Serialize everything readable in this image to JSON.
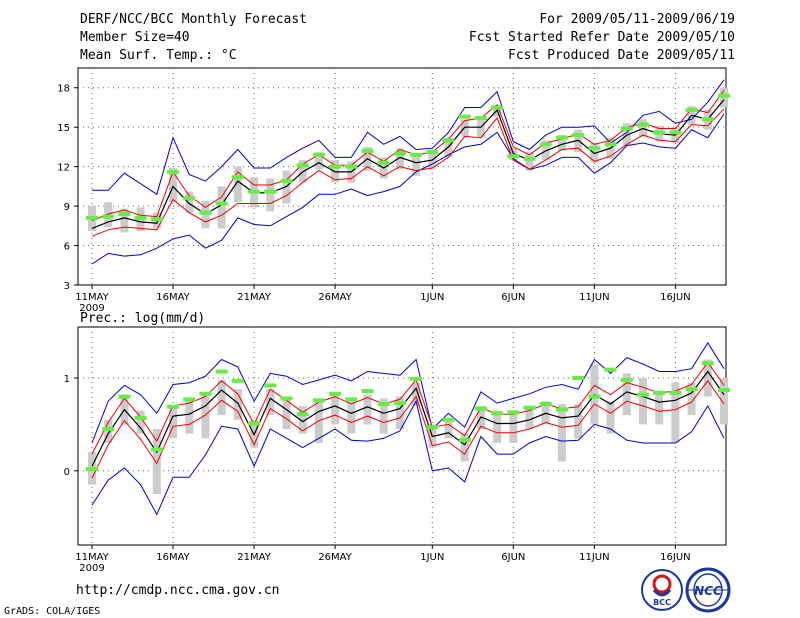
{
  "header": {
    "title": "DERF/NCC/BCC Monthly Forecast",
    "member_size": "Member Size=40",
    "variable": "Mean Surf. Temp.: °C",
    "period": "For 2009/05/11-2009/06/19",
    "fcst_started": "Fcst Started Refer Date 2009/05/10",
    "fcst_produced": "Fcst Produced Date 2009/05/11"
  },
  "footer": {
    "url": "http://cmdp.ncc.cma.gov.cn",
    "grads": "GrADS: COLA/IGES",
    "logo_bcc": "BCC",
    "logo_ncc": "NCC"
  },
  "colors": {
    "envelope": "#0000cc",
    "spread": "#ee0000",
    "mean": "#000000",
    "box": "#cccccc",
    "median": "#66ee44",
    "grid": "#666666"
  },
  "chart_data": [
    {
      "type": "line",
      "title": "Mean Surf. Temp.: °C",
      "ylim": [
        3,
        19.5
      ],
      "yticks": [
        3,
        6,
        9,
        12,
        15,
        18
      ],
      "ytick_labels": [
        "3",
        "6",
        "9",
        "12",
        "15",
        "18"
      ],
      "xtick_days": [
        0,
        5,
        10,
        15,
        21,
        26,
        31,
        36
      ],
      "xtick_labels": [
        "11MAY",
        "16MAY",
        "21MAY",
        "26MAY",
        "1JUN",
        "6JUN",
        "11JUN",
        "16JUN"
      ],
      "x_year": "2009",
      "days": 40,
      "series": [
        {
          "name": "max",
          "values": [
            10.2,
            10.2,
            11.5,
            10.7,
            9.9,
            14.2,
            11.4,
            10.9,
            12.0,
            13.3,
            11.9,
            11.9,
            12.7,
            13.4,
            14.0,
            12.7,
            12.7,
            14.6,
            13.7,
            14.3,
            13.3,
            13.4,
            14.6,
            16.5,
            16.5,
            17.7,
            13.9,
            13.3,
            14.4,
            15.0,
            15.0,
            15.1,
            13.8,
            14.6,
            15.9,
            16.2,
            15.3,
            15.6,
            16.9,
            18.6
          ]
        },
        {
          "name": "min",
          "values": [
            4.6,
            5.4,
            5.2,
            5.3,
            5.8,
            6.5,
            6.8,
            5.8,
            6.4,
            8.1,
            7.6,
            7.5,
            8.2,
            8.9,
            9.9,
            9.9,
            10.3,
            9.8,
            10.1,
            10.5,
            11.6,
            12.2,
            12.9,
            13.5,
            13.7,
            14.6,
            12.6,
            11.8,
            12.1,
            12.7,
            12.7,
            11.5,
            12.3,
            13.6,
            13.8,
            13.5,
            13.4,
            14.8,
            14.2,
            16.0
          ]
        },
        {
          "name": "spread_upper",
          "values": [
            7.9,
            8.4,
            8.7,
            8.3,
            8.2,
            11.6,
            9.8,
            8.9,
            9.7,
            11.6,
            10.6,
            10.6,
            11.0,
            12.2,
            12.9,
            12.1,
            12.1,
            13.1,
            12.4,
            13.3,
            12.9,
            13.1,
            14.1,
            15.5,
            15.7,
            16.7,
            13.5,
            12.9,
            13.8,
            14.1,
            14.5,
            13.7,
            14.0,
            15.0,
            15.3,
            14.9,
            14.9,
            16.4,
            16.1,
            17.8
          ]
        },
        {
          "name": "spread_lower",
          "values": [
            6.7,
            7.2,
            7.4,
            7.3,
            7.2,
            9.5,
            8.5,
            7.8,
            8.3,
            9.2,
            9.2,
            9.2,
            9.8,
            10.8,
            11.7,
            11.0,
            11.1,
            12.0,
            11.3,
            12.0,
            11.7,
            11.9,
            12.7,
            14.3,
            14.2,
            15.7,
            12.5,
            11.8,
            12.5,
            13.3,
            13.4,
            12.4,
            12.8,
            13.7,
            14.4,
            14.0,
            13.9,
            15.2,
            15.1,
            16.4
          ]
        },
        {
          "name": "ensemble_mean",
          "values": [
            7.3,
            7.8,
            8.1,
            7.8,
            7.7,
            10.5,
            9.2,
            8.4,
            9.1,
            10.9,
            10.0,
            10.0,
            10.5,
            11.6,
            12.3,
            11.6,
            11.6,
            12.6,
            11.9,
            12.7,
            12.3,
            12.5,
            13.5,
            15.0,
            15.0,
            16.3,
            13.0,
            12.5,
            13.2,
            13.7,
            14.0,
            13.0,
            13.4,
            14.4,
            14.9,
            14.5,
            14.4,
            15.9,
            15.6,
            17.1
          ]
        },
        {
          "name": "median",
          "values": [
            8.1,
            8.2,
            8.4,
            8.1,
            8.0,
            11.6,
            9.6,
            8.5,
            9.2,
            11.2,
            10.1,
            10.1,
            10.9,
            12.1,
            12.9,
            12.0,
            12.0,
            13.2,
            12.3,
            13.0,
            12.9,
            13.1,
            14.0,
            15.8,
            15.7,
            16.5,
            12.8,
            12.6,
            13.7,
            14.2,
            14.4,
            13.4,
            13.7,
            14.9,
            15.2,
            14.6,
            14.6,
            16.3,
            15.6,
            17.4
          ]
        },
        {
          "name": "box_high",
          "values": [
            9.0,
            9.3,
            8.8,
            8.9,
            8.5,
            11.9,
            10.1,
            9.4,
            10.5,
            12.0,
            11.2,
            11.1,
            11.7,
            12.5,
            13.1,
            12.5,
            12.4,
            13.5,
            12.7,
            13.4,
            13.0,
            13.3,
            14.2,
            15.6,
            15.6,
            16.7,
            13.4,
            13.1,
            14.0,
            14.4,
            14.8,
            13.8,
            14.2,
            15.3,
            15.6,
            15.1,
            15.0,
            16.6,
            16.3,
            18.0
          ]
        },
        {
          "name": "box_low",
          "values": [
            7.1,
            7.4,
            7.0,
            7.1,
            7.3,
            9.3,
            8.5,
            7.3,
            7.3,
            9.3,
            8.9,
            8.6,
            9.2,
            10.8,
            11.8,
            10.8,
            10.8,
            11.7,
            11.1,
            11.8,
            11.3,
            11.8,
            12.7,
            14.3,
            14.2,
            15.8,
            12.5,
            11.7,
            12.5,
            13.2,
            13.1,
            12.3,
            12.6,
            13.6,
            14.3,
            13.9,
            13.8,
            15.2,
            14.8,
            16.5
          ]
        }
      ]
    },
    {
      "type": "line",
      "title": "Prec.: log(mm/d)",
      "ylim": [
        -0.8,
        1.55
      ],
      "yticks": [
        0,
        1
      ],
      "ytick_labels": [
        "0",
        "1"
      ],
      "xtick_days": [
        0,
        5,
        10,
        15,
        21,
        26,
        31,
        36
      ],
      "xtick_labels": [
        "11MAY",
        "16MAY",
        "21MAY",
        "26MAY",
        "1JUN",
        "6JUN",
        "11JUN",
        "16JUN"
      ],
      "x_year": "2009",
      "days": 40,
      "series": [
        {
          "name": "max",
          "values": [
            0.3,
            0.75,
            0.92,
            0.82,
            0.62,
            0.93,
            0.95,
            1.02,
            1.2,
            1.12,
            0.75,
            1.05,
            1.02,
            0.93,
            0.98,
            1.03,
            0.97,
            1.07,
            1.05,
            1.03,
            1.2,
            0.45,
            0.62,
            0.47,
            0.85,
            0.73,
            0.78,
            0.83,
            0.9,
            0.93,
            0.88,
            1.2,
            1.05,
            1.22,
            1.15,
            1.07,
            1.07,
            1.1,
            1.38,
            1.1
          ]
        },
        {
          "name": "min",
          "values": [
            -0.37,
            -0.1,
            0.03,
            -0.15,
            -0.47,
            -0.07,
            -0.07,
            0.17,
            0.48,
            0.45,
            0.05,
            0.45,
            0.35,
            0.25,
            0.35,
            0.45,
            0.33,
            0.32,
            0.35,
            0.43,
            0.75,
            0.0,
            0.03,
            -0.12,
            0.37,
            0.18,
            0.18,
            0.3,
            0.37,
            0.32,
            0.33,
            0.5,
            0.45,
            0.33,
            0.3,
            0.3,
            0.3,
            0.42,
            0.7,
            0.35
          ]
        },
        {
          "name": "spread_upper",
          "values": [
            0.18,
            0.52,
            0.78,
            0.58,
            0.32,
            0.7,
            0.73,
            0.8,
            0.97,
            0.83,
            0.5,
            0.88,
            0.76,
            0.63,
            0.74,
            0.8,
            0.72,
            0.79,
            0.72,
            0.77,
            0.98,
            0.47,
            0.5,
            0.38,
            0.68,
            0.61,
            0.61,
            0.65,
            0.72,
            0.67,
            0.69,
            0.92,
            0.82,
            0.95,
            0.9,
            0.84,
            0.86,
            0.93,
            1.17,
            0.92
          ]
        },
        {
          "name": "spread_lower",
          "values": [
            -0.08,
            0.28,
            0.54,
            0.34,
            0.08,
            0.48,
            0.5,
            0.6,
            0.76,
            0.64,
            0.28,
            0.67,
            0.56,
            0.43,
            0.54,
            0.6,
            0.52,
            0.59,
            0.52,
            0.57,
            0.8,
            0.27,
            0.31,
            0.18,
            0.48,
            0.41,
            0.41,
            0.45,
            0.52,
            0.47,
            0.49,
            0.72,
            0.62,
            0.75,
            0.7,
            0.64,
            0.66,
            0.74,
            0.97,
            0.72
          ]
        },
        {
          "name": "ensemble_mean",
          "values": [
            0.05,
            0.4,
            0.66,
            0.46,
            0.2,
            0.59,
            0.61,
            0.7,
            0.87,
            0.73,
            0.39,
            0.78,
            0.66,
            0.53,
            0.64,
            0.7,
            0.62,
            0.69,
            0.62,
            0.67,
            0.89,
            0.37,
            0.41,
            0.28,
            0.58,
            0.51,
            0.51,
            0.55,
            0.62,
            0.57,
            0.59,
            0.82,
            0.72,
            0.85,
            0.8,
            0.74,
            0.76,
            0.84,
            1.07,
            0.82
          ]
        },
        {
          "name": "median",
          "values": [
            0.02,
            0.45,
            0.8,
            0.57,
            0.23,
            0.69,
            0.77,
            0.83,
            1.07,
            0.97,
            0.51,
            0.92,
            0.78,
            0.61,
            0.76,
            0.83,
            0.77,
            0.86,
            0.72,
            0.73,
            0.99,
            0.47,
            0.55,
            0.33,
            0.67,
            0.62,
            0.63,
            0.68,
            0.72,
            0.66,
            1.0,
            0.8,
            1.09,
            0.98,
            0.82,
            0.84,
            0.84,
            0.88,
            1.16,
            0.87
          ]
        },
        {
          "name": "box_high",
          "values": [
            0.2,
            0.55,
            0.78,
            0.65,
            0.45,
            0.7,
            0.75,
            0.85,
            0.98,
            0.88,
            0.55,
            0.88,
            0.8,
            0.7,
            0.78,
            0.82,
            0.75,
            0.82,
            0.78,
            0.8,
            0.95,
            0.5,
            0.55,
            0.4,
            0.7,
            0.65,
            0.65,
            0.7,
            0.75,
            0.72,
            0.72,
            1.15,
            0.75,
            1.05,
            1.0,
            0.85,
            0.95,
            0.95,
            1.2,
            1.0
          ]
        },
        {
          "name": "box_low",
          "values": [
            -0.15,
            0.3,
            0.5,
            0.4,
            -0.25,
            0.35,
            0.4,
            0.35,
            0.6,
            0.55,
            0.25,
            0.6,
            0.45,
            0.4,
            0.3,
            0.5,
            0.4,
            0.5,
            0.4,
            0.45,
            0.7,
            0.25,
            0.35,
            0.1,
            0.45,
            0.3,
            0.3,
            0.45,
            0.5,
            0.1,
            0.35,
            0.5,
            0.4,
            0.6,
            0.5,
            0.5,
            0.3,
            0.6,
            0.8,
            0.5
          ]
        }
      ]
    }
  ]
}
